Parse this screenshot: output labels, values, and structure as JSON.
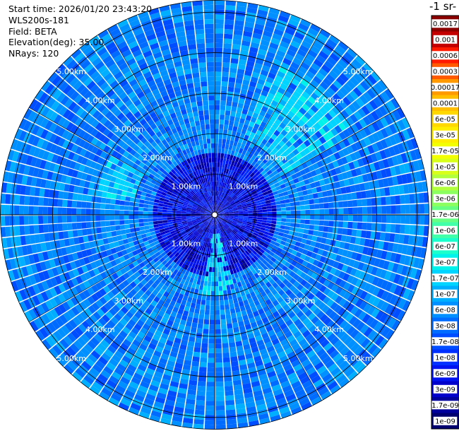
{
  "header": {
    "start_time": "Start time: 2026/01/20 23:43:20",
    "instrument": "WLS200s-181",
    "field": "Field: BETA",
    "elevation": "Elevation(deg): 35.00",
    "nrays": "NRays: 120"
  },
  "colorbar": {
    "units_label": "-1 sr-",
    "levels": [
      {
        "label": "0.0017",
        "color": "#8a0000"
      },
      {
        "label": "0.001",
        "color": "#c40000"
      },
      {
        "label": "0.0006",
        "color": "#ff1a00"
      },
      {
        "label": "0.0003",
        "color": "#ff5a00"
      },
      {
        "label": "0.00017",
        "color": "#ff9a00"
      },
      {
        "label": "0.0001",
        "color": "#ffbe00"
      },
      {
        "label": "6e-05",
        "color": "#ffd800"
      },
      {
        "label": "3e-05",
        "color": "#ffee00"
      },
      {
        "label": "1.7e-05",
        "color": "#f3ff00"
      },
      {
        "label": "1e-05",
        "color": "#d8ff1a"
      },
      {
        "label": "6e-06",
        "color": "#b2ff3d"
      },
      {
        "label": "3e-06",
        "color": "#8cff60"
      },
      {
        "label": "1.7e-06",
        "color": "#66ff84"
      },
      {
        "label": "1e-06",
        "color": "#40ffa8"
      },
      {
        "label": "6e-07",
        "color": "#1affcc"
      },
      {
        "label": "3e-07",
        "color": "#00f2ea"
      },
      {
        "label": "1.7e-07",
        "color": "#00d4ff"
      },
      {
        "label": "1e-07",
        "color": "#00b0ff"
      },
      {
        "label": "6e-08",
        "color": "#0090ff"
      },
      {
        "label": "3e-08",
        "color": "#006cff"
      },
      {
        "label": "1.7e-08",
        "color": "#004cff"
      },
      {
        "label": "1e-08",
        "color": "#0030ff"
      },
      {
        "label": "6e-09",
        "color": "#0012f0"
      },
      {
        "label": "3e-09",
        "color": "#0000cc"
      },
      {
        "label": "1.7e-09",
        "color": "#00009c"
      },
      {
        "label": "1e-09",
        "color": "#000070"
      }
    ]
  },
  "chart_data": {
    "type": "heatmap",
    "projection": "polar (PPI)",
    "field": "BETA",
    "elevation_deg": 35.0,
    "n_rays": 120,
    "range_rings_km": [
      1.0,
      2.0,
      3.0,
      4.0,
      5.0
    ],
    "ring_labels": [
      "1.00km",
      "2.00km",
      "3.00km",
      "4.00km",
      "5.00km"
    ],
    "max_range_km": 5.3,
    "typical_value_range": [
      1.7e-08,
      6e-08
    ],
    "enhanced_regions": [
      {
        "azimuth_deg": [
          20,
          60
        ],
        "range_km": [
          2.0,
          4.0
        ],
        "value": 1.7e-07
      },
      {
        "azimuth_deg": [
          165,
          190
        ],
        "range_km": [
          0.5,
          2.0
        ],
        "value": 1.7e-07
      },
      {
        "azimuth_deg": [
          280,
          300
        ],
        "range_km": [
          2.0,
          3.0
        ],
        "value": 1.7e-07
      }
    ],
    "grid": true
  }
}
